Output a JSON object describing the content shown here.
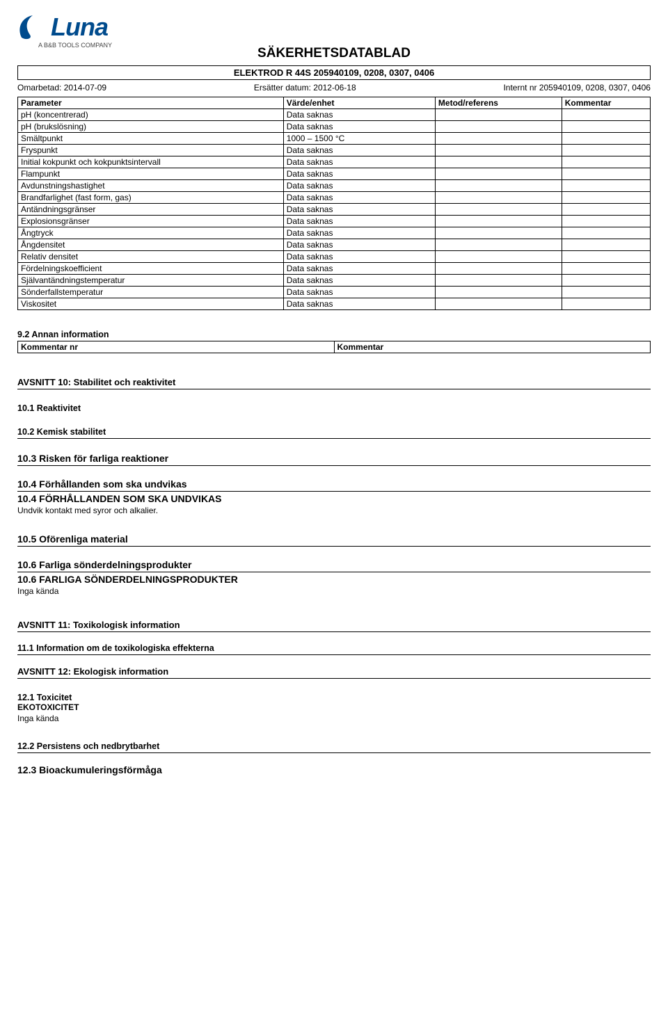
{
  "logo": {
    "main": "Luna",
    "sub": "A B&B TOOLS COMPANY",
    "color": "#004b8d"
  },
  "header": {
    "title": "SÄKERHETSDATABLAD",
    "subtitle": "ELEKTROD R 44S 205940109, 0208, 0307, 0406",
    "revised_label": "Omarbetad: 2014-07-09",
    "replaces_label": "Ersätter datum: 2012-06-18",
    "internal_label": "Internt nr 205940109, 0208, 0307, 0406"
  },
  "param_table": {
    "headers": {
      "p": "Parameter",
      "v": "Värde/enhet",
      "m": "Metod/referens",
      "k": "Kommentar"
    },
    "rows": [
      {
        "p": "pH (koncentrerad)",
        "v": "Data saknas"
      },
      {
        "p": "pH (brukslösning)",
        "v": "Data saknas"
      },
      {
        "p": "Smältpunkt",
        "v": "1000 – 1500 °C"
      },
      {
        "p": "Fryspunkt",
        "v": "Data saknas"
      },
      {
        "p": "Initial kokpunkt och kokpunktsintervall",
        "v": "Data saknas"
      },
      {
        "p": "Flampunkt",
        "v": "Data saknas"
      },
      {
        "p": "Avdunstningshastighet",
        "v": "Data saknas"
      },
      {
        "p": "Brandfarlighet (fast form, gas)",
        "v": "Data saknas"
      },
      {
        "p": "Antändningsgränser",
        "v": "Data saknas"
      },
      {
        "p": "Explosionsgränser",
        "v": "Data saknas"
      },
      {
        "p": "Ångtryck",
        "v": "Data saknas"
      },
      {
        "p": "Ångdensitet",
        "v": "Data saknas"
      },
      {
        "p": "Relativ densitet",
        "v": "Data saknas"
      },
      {
        "p": "Fördelningskoefficient",
        "v": "Data saknas"
      },
      {
        "p": "Självantändningstemperatur",
        "v": "Data saknas"
      },
      {
        "p": "Sönderfallstemperatur",
        "v": "Data saknas"
      },
      {
        "p": "Viskositet",
        "v": "Data saknas"
      }
    ]
  },
  "s9_2": {
    "title": "9.2 Annan information",
    "col1": "Kommentar nr",
    "col2": "Kommentar"
  },
  "avsnitt10": {
    "title": "AVSNITT 10: Stabilitet och reaktivitet",
    "s1": "10.1 Reaktivitet",
    "s2": "10.2 Kemisk stabilitet",
    "s3": "10.3 Risken för farliga reaktioner",
    "s4a": "10.4 Förhållanden som ska undvikas",
    "s4b": "10.4 FÖRHÅLLANDEN SOM SKA UNDVIKAS",
    "s4text": "Undvik kontakt med syror och alkalier.",
    "s5": "10.5 Oförenliga material",
    "s6a": "10.6 Farliga sönderdelningsprodukter",
    "s6b": "10.6 FARLIGA SÖNDERDELNINGSPRODUKTER",
    "s6text": "Inga kända"
  },
  "avsnitt11": {
    "title": "AVSNITT 11: Toxikologisk information",
    "s1": "11.1 Information om de toxikologiska effekterna"
  },
  "avsnitt12": {
    "title": "AVSNITT 12: Ekologisk information",
    "s1": "12.1 Toxicitet",
    "s1b": "EKOTOXICITET",
    "s1text": "Inga kända",
    "s2": "12.2 Persistens och nedbrytbarhet",
    "s3": "12.3 Bioackumuleringsförmåga"
  }
}
